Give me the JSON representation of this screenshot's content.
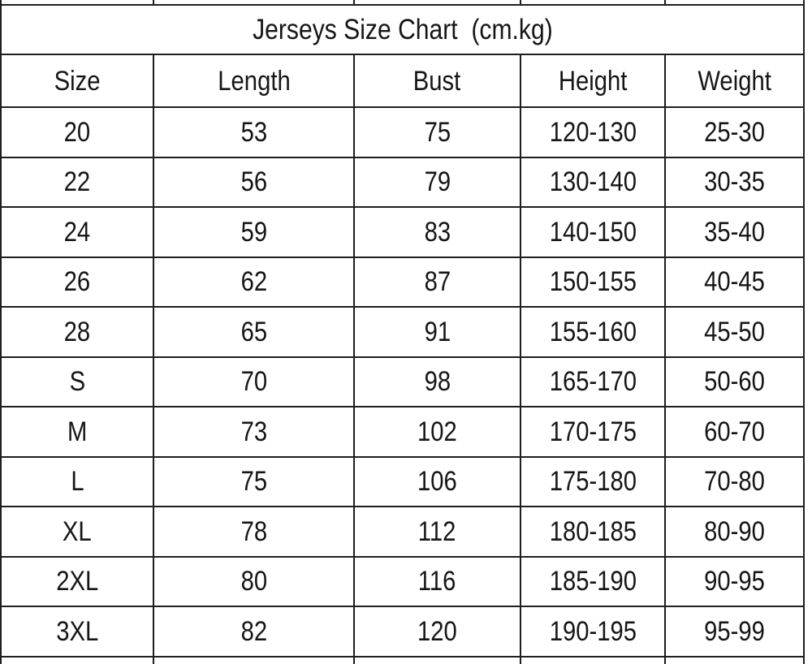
{
  "chart_data": {
    "type": "table",
    "title": "Jerseys Size Chart  (cm.kg)",
    "headers": [
      "Size",
      "Length",
      "Bust",
      "Height",
      "Weight"
    ],
    "rows": [
      [
        "20",
        "53",
        "75",
        "120-130",
        "25-30"
      ],
      [
        "22",
        "56",
        "79",
        "130-140",
        "30-35"
      ],
      [
        "24",
        "59",
        "83",
        "140-150",
        "35-40"
      ],
      [
        "26",
        "62",
        "87",
        "150-155",
        "40-45"
      ],
      [
        "28",
        "65",
        "91",
        "155-160",
        "45-50"
      ],
      [
        "S",
        "70",
        "98",
        "165-170",
        "50-60"
      ],
      [
        "M",
        "73",
        "102",
        "170-175",
        "60-70"
      ],
      [
        "L",
        "75",
        "106",
        "175-180",
        "70-80"
      ],
      [
        "XL",
        "78",
        "112",
        "180-185",
        "80-90"
      ],
      [
        "2XL",
        "80",
        "116",
        "185-190",
        "90-95"
      ],
      [
        "3XL",
        "82",
        "120",
        "190-195",
        "95-99"
      ]
    ],
    "colors": {
      "border": "#1e1e1e",
      "text": "#161616",
      "background": "#ffffff"
    },
    "layout": {
      "grid": "on",
      "title_row_spans_all_columns": true,
      "partial_rows_cropped_top_and_bottom": true
    }
  }
}
